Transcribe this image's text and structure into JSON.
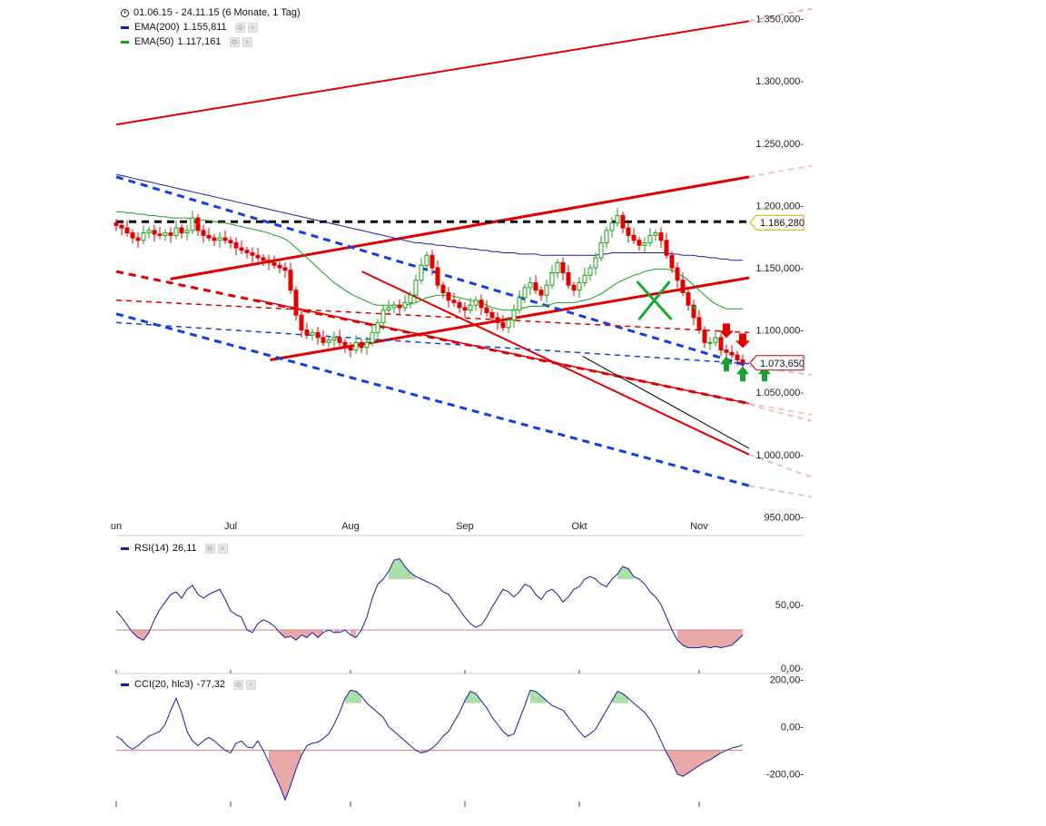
{
  "chart_data": [
    {
      "type": "candlestick",
      "header": {
        "date_range": "01.06.15 - 24.11.15 (6 Monate, 1 Tag)",
        "ema200_label": "EMA(200)",
        "ema200_value": "1.155,811",
        "ema50_label": "EMA(50)",
        "ema50_value": "1.117,161"
      },
      "x_labels": [
        {
          "text": "un",
          "day": 0
        },
        {
          "text": "Jul",
          "day": 21
        },
        {
          "text": "Aug",
          "day": 43
        },
        {
          "text": "Sep",
          "day": 64
        },
        {
          "text": "Okt",
          "day": 85
        },
        {
          "text": "Nov",
          "day": 107
        }
      ],
      "y_ticks": [
        950,
        1000,
        1050,
        1100,
        1150,
        1200,
        1250,
        1300,
        1350
      ],
      "y_tick_labels": [
        "950,000-",
        "1.000,000-",
        "1.050,000-",
        "1.100,000-",
        "1.150,000-",
        "1.200,000-",
        "1.250,000-",
        "1.300,000-",
        "1.350,000-"
      ],
      "ylim": [
        935,
        1365
      ],
      "xlim": [
        0,
        152
      ],
      "close": [
        1184,
        1182,
        1178,
        1174,
        1172,
        1178,
        1180,
        1177,
        1176,
        1178,
        1176,
        1182,
        1178,
        1180,
        1190,
        1180,
        1176,
        1174,
        1172,
        1174,
        1172,
        1170,
        1166,
        1164,
        1162,
        1160,
        1158,
        1156,
        1154,
        1152,
        1150,
        1148,
        1132,
        1112,
        1100,
        1096,
        1098,
        1094,
        1090,
        1092,
        1094,
        1090,
        1086,
        1084,
        1090,
        1086,
        1090,
        1098,
        1106,
        1116,
        1118,
        1120,
        1118,
        1122,
        1128,
        1140,
        1152,
        1160,
        1150,
        1136,
        1130,
        1124,
        1122,
        1118,
        1116,
        1120,
        1124,
        1118,
        1114,
        1110,
        1106,
        1102,
        1108,
        1116,
        1126,
        1134,
        1138,
        1132,
        1128,
        1136,
        1146,
        1154,
        1146,
        1136,
        1132,
        1138,
        1144,
        1150,
        1158,
        1170,
        1180,
        1186,
        1192,
        1182,
        1176,
        1172,
        1168,
        1170,
        1176,
        1178,
        1172,
        1160,
        1150,
        1140,
        1130,
        1120,
        1110,
        1100,
        1090,
        1090,
        1094,
        1084,
        1082,
        1080,
        1076,
        1074
      ],
      "ema200": [
        1225,
        1224,
        1223,
        1222,
        1221,
        1220,
        1219,
        1218,
        1217,
        1216,
        1215,
        1214,
        1213,
        1212,
        1211,
        1210,
        1209,
        1208,
        1207,
        1206,
        1205,
        1204,
        1203,
        1202,
        1201,
        1200,
        1199,
        1198,
        1197,
        1196,
        1195,
        1194,
        1193,
        1192,
        1191,
        1190,
        1189,
        1188,
        1187,
        1186,
        1185,
        1184,
        1183,
        1182,
        1181,
        1180,
        1179,
        1178,
        1177,
        1176,
        1175,
        1174,
        1173,
        1172,
        1171,
        1170,
        1170,
        1169,
        1169,
        1168,
        1168,
        1167,
        1167,
        1166,
        1166,
        1165,
        1165,
        1164,
        1164,
        1163,
        1163,
        1162,
        1162,
        1162,
        1161,
        1161,
        1161,
        1161,
        1160,
        1160,
        1160,
        1160,
        1160,
        1160,
        1160,
        1160,
        1160,
        1160,
        1160,
        1161,
        1161,
        1162,
        1162,
        1162,
        1162,
        1162,
        1162,
        1162,
        1162,
        1162,
        1162,
        1162,
        1161,
        1161,
        1160,
        1160,
        1160,
        1159,
        1159,
        1158,
        1158,
        1157,
        1157,
        1156,
        1156,
        1156
      ],
      "ema50": [
        1195,
        1195,
        1194,
        1194,
        1193,
        1193,
        1192,
        1192,
        1191,
        1191,
        1190,
        1190,
        1190,
        1190,
        1189,
        1189,
        1188,
        1188,
        1187,
        1187,
        1186,
        1185,
        1184,
        1183,
        1182,
        1181,
        1180,
        1179,
        1178,
        1176,
        1175,
        1173,
        1170,
        1166,
        1162,
        1158,
        1154,
        1150,
        1146,
        1142,
        1138,
        1135,
        1132,
        1129,
        1127,
        1125,
        1123,
        1121,
        1120,
        1120,
        1120,
        1120,
        1120,
        1120,
        1121,
        1122,
        1124,
        1126,
        1127,
        1128,
        1128,
        1128,
        1127,
        1126,
        1125,
        1124,
        1123,
        1122,
        1120,
        1118,
        1117,
        1116,
        1116,
        1116,
        1117,
        1118,
        1119,
        1119,
        1119,
        1120,
        1121,
        1122,
        1122,
        1122,
        1122,
        1123,
        1124,
        1125,
        1127,
        1129,
        1132,
        1135,
        1138,
        1140,
        1142,
        1144,
        1145,
        1147,
        1148,
        1149,
        1149,
        1149,
        1148,
        1146,
        1143,
        1140,
        1136,
        1132,
        1128,
        1124,
        1121,
        1119,
        1117,
        1117,
        1117,
        1117
      ],
      "price_tags": [
        {
          "label": "1.186,280",
          "value": 1186.28,
          "color": "#e0a000"
        },
        {
          "label": "1.073,650",
          "value": 1073.65,
          "color": "#cc0000"
        }
      ],
      "trendlines": [
        {
          "x1": 0,
          "y1": 1265,
          "x2": 152,
          "y2": 1348,
          "color": "#e00000",
          "width": 2,
          "dash": ""
        },
        {
          "x1": 13,
          "y1": 1141,
          "x2": 152,
          "y2": 1223,
          "color": "#e00000",
          "width": 3,
          "dash": ""
        },
        {
          "x1": 37,
          "y1": 1076,
          "x2": 152,
          "y2": 1142,
          "color": "#e00000",
          "width": 3,
          "dash": ""
        },
        {
          "x1": 0,
          "y1": 1187,
          "x2": 152,
          "y2": 1187,
          "color": "#000000",
          "width": 3,
          "dash": "8,6"
        },
        {
          "x1": 0,
          "y1": 1223,
          "x2": 152,
          "y2": 1071,
          "color": "#1040e0",
          "width": 3,
          "dash": "8,6"
        },
        {
          "x1": 0,
          "y1": 1113,
          "x2": 152,
          "y2": 975,
          "color": "#1040e0",
          "width": 3,
          "dash": "8,6"
        },
        {
          "x1": 0,
          "y1": 1106,
          "x2": 152,
          "y2": 1073,
          "color": "#1040e0",
          "width": 1.5,
          "dash": "6,5"
        },
        {
          "x1": 0,
          "y1": 1147,
          "x2": 152,
          "y2": 1041,
          "color": "#e00000",
          "width": 3,
          "dash": "8,6"
        },
        {
          "x1": 0,
          "y1": 1124,
          "x2": 152,
          "y2": 1098,
          "color": "#e00000",
          "width": 1.5,
          "dash": "6,5"
        },
        {
          "x1": 59,
          "y1": 1147,
          "x2": 152,
          "y2": 1000,
          "color": "#e00000",
          "width": 2,
          "dash": ""
        },
        {
          "x1": 34,
          "y1": 1124,
          "x2": 152,
          "y2": 1041,
          "color": "#e00000",
          "width": 1.5,
          "dash": ""
        },
        {
          "x1": 112,
          "y1": 1079,
          "x2": 152,
          "y2": 1005,
          "color": "#000000",
          "width": 1,
          "dash": ""
        }
      ],
      "fade_lines": [
        {
          "x1": 152,
          "y1": 1348,
          "x2": 167,
          "y2": 1358,
          "color": "#f0b0b0"
        },
        {
          "x1": 152,
          "y1": 1223,
          "x2": 167,
          "y2": 1232,
          "color": "#f2c0c0"
        },
        {
          "x1": 152,
          "y1": 1071,
          "x2": 167,
          "y2": 1064,
          "color": "#c0c8f0"
        },
        {
          "x1": 152,
          "y1": 975,
          "x2": 167,
          "y2": 966,
          "color": "#c0c8f0"
        },
        {
          "x1": 152,
          "y1": 1041,
          "x2": 167,
          "y2": 1032,
          "color": "#f2c0c0"
        },
        {
          "x1": 152,
          "y1": 1000,
          "x2": 167,
          "y2": 982,
          "color": "#f2c0c0"
        },
        {
          "x1": 152,
          "y1": 1040,
          "x2": 167,
          "y2": 1027,
          "color": "#f2c0c0"
        }
      ],
      "arrows_down": [
        112,
        115
      ],
      "arrows_up": [
        112,
        115,
        119
      ],
      "x_mark": {
        "day": 129,
        "value": 1123,
        "color": "#18a830"
      },
      "dot": {
        "day": 139,
        "value": 1118,
        "color": "#18a830"
      }
    },
    {
      "type": "line",
      "label": "RSI(14)",
      "value_label": "26,11",
      "y_tick_labels": [
        "50,00-",
        "0,00-"
      ],
      "ylim": [
        0,
        100
      ],
      "values": [
        45,
        40,
        34,
        28,
        24,
        22,
        28,
        38,
        46,
        52,
        58,
        60,
        55,
        62,
        65,
        58,
        55,
        58,
        60,
        62,
        54,
        45,
        42,
        40,
        30,
        28,
        35,
        38,
        36,
        33,
        28,
        24,
        25,
        22,
        26,
        24,
        28,
        24,
        28,
        30,
        28,
        28,
        30,
        26,
        24,
        30,
        40,
        55,
        66,
        70,
        76,
        85,
        86,
        80,
        75,
        72,
        70,
        68,
        66,
        64,
        60,
        58,
        52,
        46,
        40,
        35,
        32,
        34,
        40,
        48,
        55,
        62,
        60,
        56,
        60,
        66,
        64,
        58,
        54,
        60,
        62,
        58,
        52,
        56,
        62,
        64,
        70,
        72,
        70,
        66,
        64,
        70,
        74,
        80,
        78,
        72,
        70,
        66,
        60,
        56,
        50,
        40,
        30,
        22,
        18,
        16,
        16,
        16,
        17,
        16,
        17,
        16,
        17,
        18,
        22,
        26
      ],
      "threshold_low": 30,
      "threshold_high": 70,
      "fill_low": "#e8a8a8",
      "fill_high": "#a8e0a8"
    },
    {
      "type": "line",
      "label": "CCI(20, hlc3)",
      "value_label": "-77,32",
      "y_tick_labels": [
        "200,00-",
        "0,00-",
        "-200,00-"
      ],
      "ylim": [
        -305,
        210
      ],
      "values": [
        -40,
        -55,
        -80,
        -95,
        -80,
        -60,
        -40,
        -30,
        -20,
        10,
        70,
        120,
        60,
        -20,
        -60,
        -80,
        -60,
        -45,
        -60,
        -80,
        -100,
        -110,
        -70,
        -60,
        -85,
        -90,
        -60,
        -100,
        -150,
        -200,
        -250,
        -310,
        -250,
        -180,
        -120,
        -80,
        -70,
        -65,
        -50,
        -30,
        10,
        60,
        120,
        155,
        150,
        130,
        100,
        80,
        60,
        40,
        0,
        -20,
        -40,
        -60,
        -80,
        -100,
        -110,
        -105,
        -90,
        -70,
        -40,
        -20,
        20,
        60,
        110,
        150,
        140,
        110,
        80,
        40,
        10,
        -20,
        -40,
        -30,
        30,
        90,
        155,
        150,
        130,
        110,
        90,
        80,
        70,
        40,
        10,
        -20,
        -45,
        -30,
        -10,
        30,
        70,
        110,
        150,
        140,
        120,
        100,
        80,
        60,
        30,
        -10,
        -60,
        -110,
        -150,
        -200,
        -210,
        -195,
        -180,
        -165,
        -150,
        -140,
        -125,
        -110,
        -100,
        -90,
        -85,
        -77
      ],
      "threshold_low": -100,
      "threshold_high": 100,
      "fill_low": "#e8a8a8",
      "fill_high": "#a8e0a8"
    }
  ]
}
